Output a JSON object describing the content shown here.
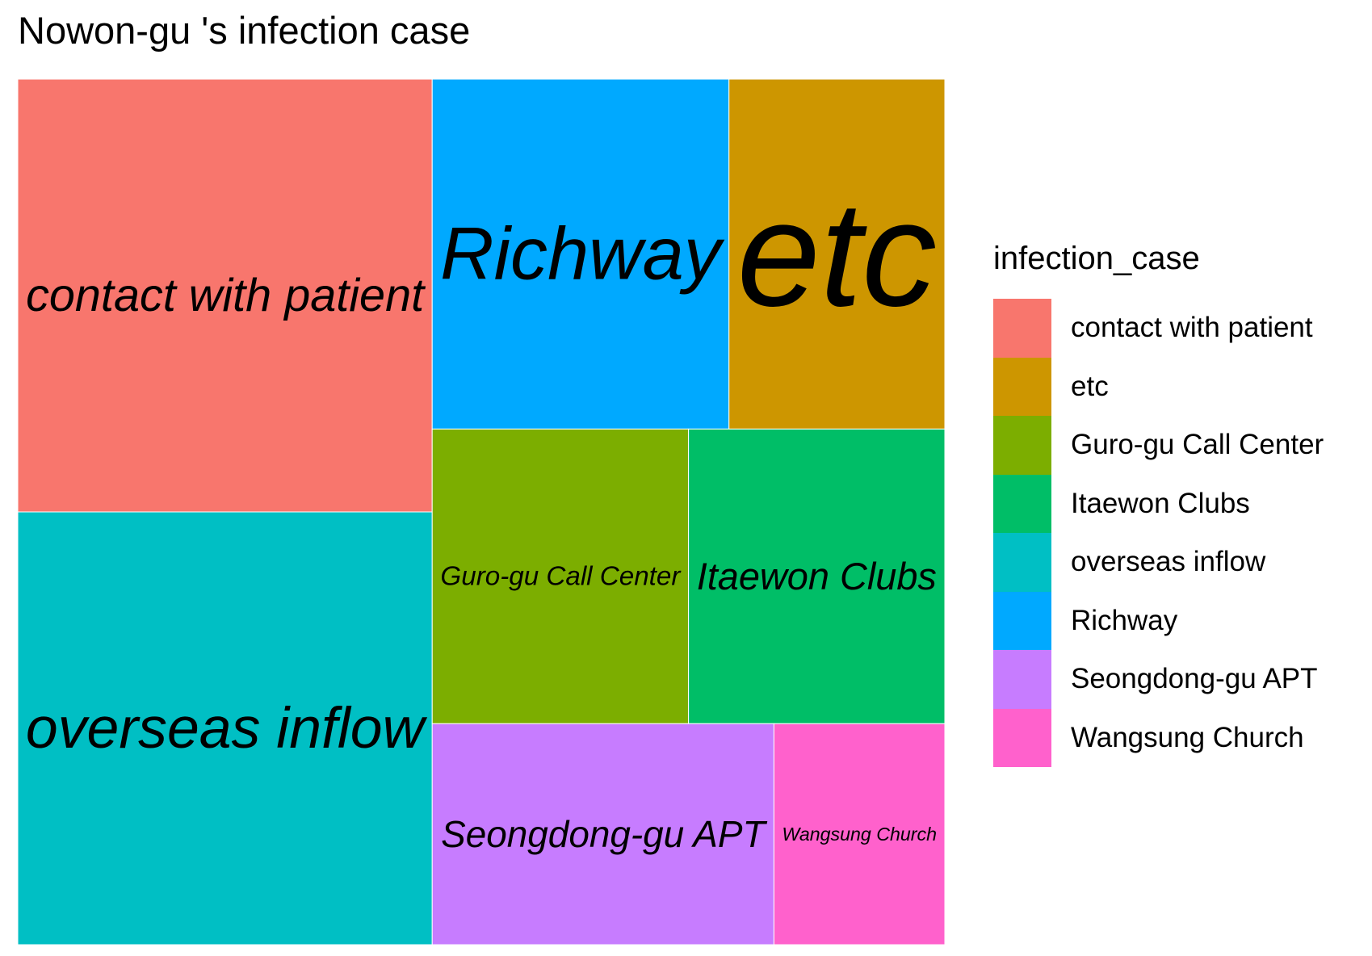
{
  "chart_data": {
    "type": "treemap",
    "title": "Nowon-gu 's infection case",
    "legend_title": "infection_case",
    "legend_position": "right",
    "categories": [
      "contact with patient",
      "etc",
      "Guro-gu Call Center",
      "Itaewon Clubs",
      "overseas inflow",
      "Richway",
      "Seongdong-gu APT",
      "Wangsung Church"
    ],
    "colors": {
      "contact with patient": "#F8766D",
      "etc": "#CD9600",
      "Guro-gu Call Center": "#7CAE00",
      "Itaewon Clubs": "#00BE67",
      "overseas inflow": "#00BFC4",
      "Richway": "#00A9FF",
      "Seongdong-gu APT": "#C77CFF",
      "Wangsung Church": "#FF61CC"
    },
    "values": [
      {
        "label": "contact with patient",
        "value": 19
      },
      {
        "label": "overseas inflow",
        "value": 19
      },
      {
        "label": "Richway",
        "value": 11
      },
      {
        "label": "etc",
        "value": 8
      },
      {
        "label": "Guro-gu Call Center",
        "value": 8
      },
      {
        "label": "Itaewon Clubs",
        "value": 8
      },
      {
        "label": "Seongdong-gu APT",
        "value": 8
      },
      {
        "label": "Wangsung Church",
        "value": 4
      }
    ]
  }
}
